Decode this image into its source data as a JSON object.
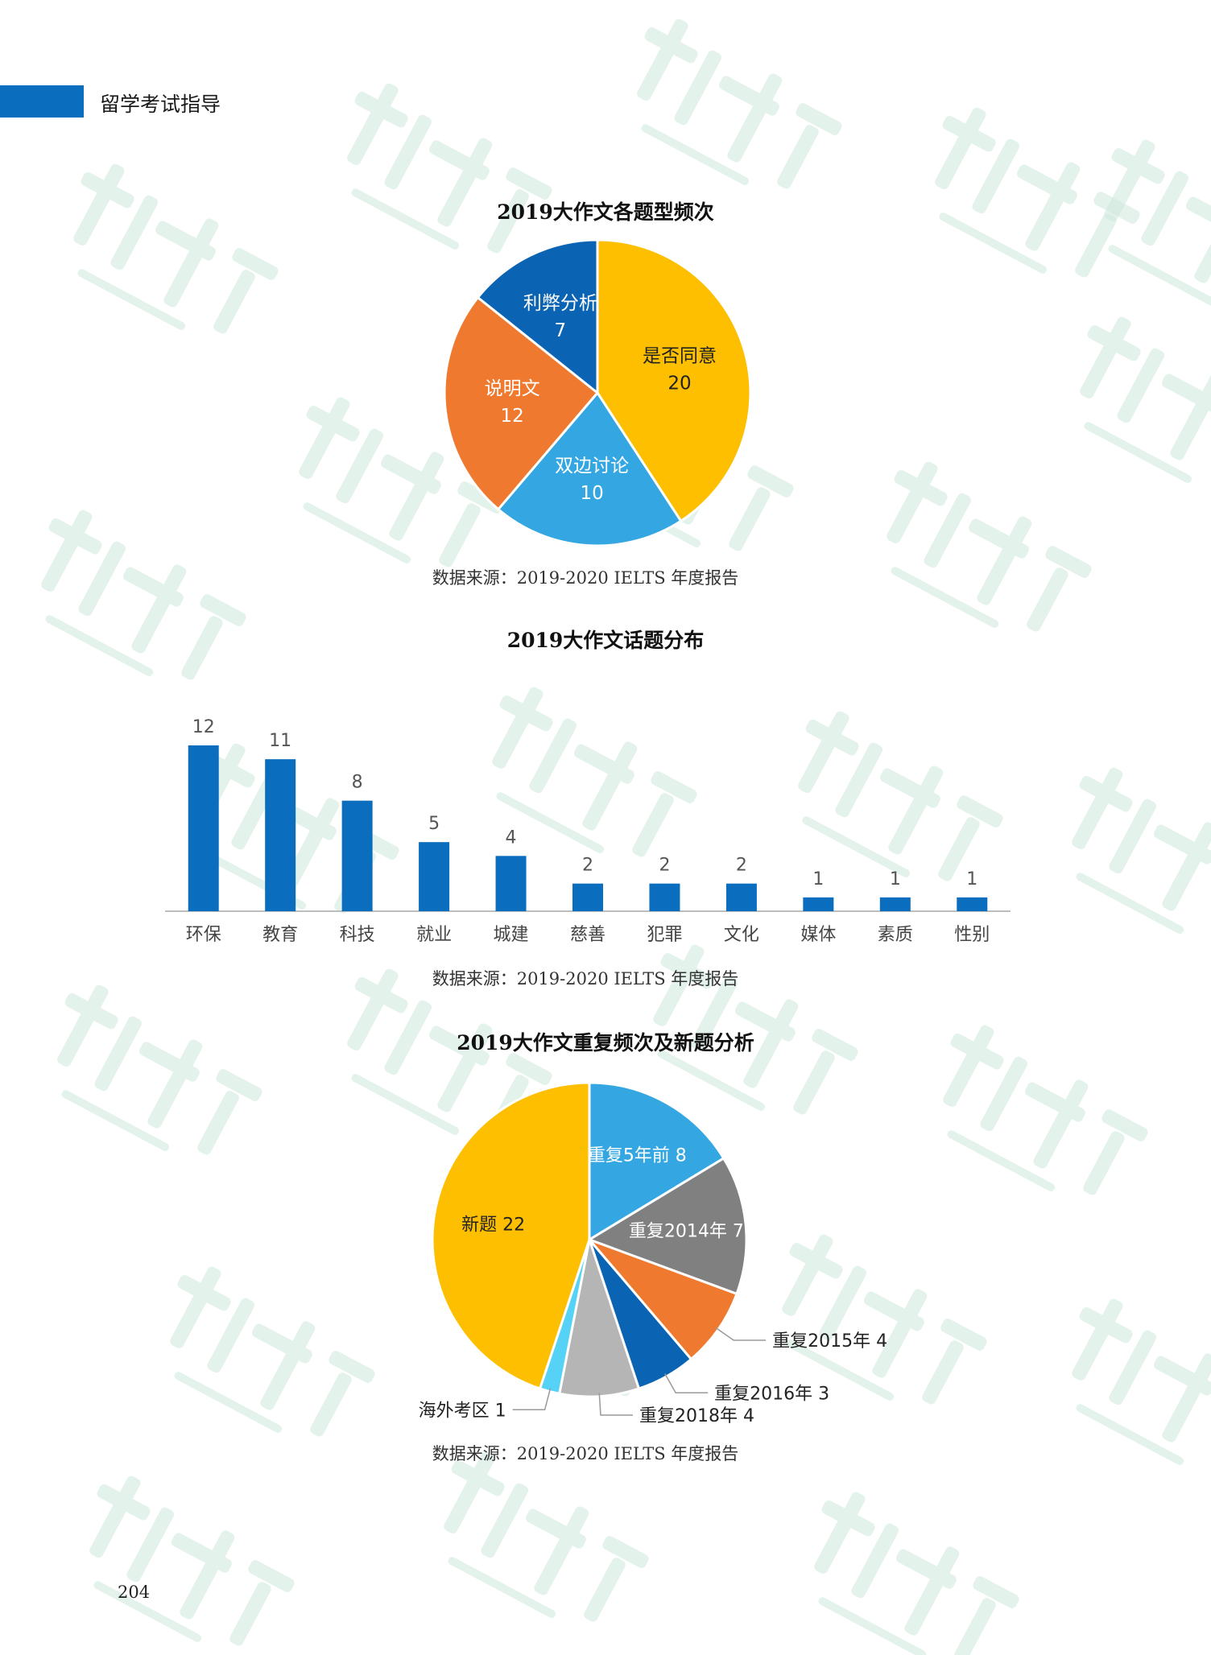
{
  "header": {
    "section_label": "留学考试指导"
  },
  "page_number": "204",
  "colors": {
    "accent": "#0b6dbd",
    "yellow": "#fdbf00",
    "light_blue": "#34a7e2",
    "orange": "#ef7a2f",
    "dark_blue": "#0b63b3",
    "gray": "#808080",
    "light_gray": "#b5b5b5",
    "cyan": "#56d2f6",
    "watermark": "#cfe8dd"
  },
  "chart_data": [
    {
      "type": "pie",
      "title": "2019大作文各题型频次",
      "source": "数据来源：2019-2020 IELTS 年度报告",
      "slices": [
        {
          "label": "是否同意",
          "value": 20,
          "color": "#fdbf00",
          "text_color": "#222222"
        },
        {
          "label": "双边讨论",
          "value": 10,
          "color": "#34a7e2",
          "text_color": "#ffffff"
        },
        {
          "label": "说明文",
          "value": 12,
          "color": "#ef7a2f",
          "text_color": "#ffffff"
        },
        {
          "label": "利弊分析",
          "value": 7,
          "color": "#0b63b3",
          "text_color": "#ffffff"
        }
      ]
    },
    {
      "type": "bar",
      "title": "2019大作文话题分布",
      "source": "数据来源：2019-2020 IELTS 年度报告",
      "categories": [
        "环保",
        "教育",
        "科技",
        "就业",
        "城建",
        "慈善",
        "犯罪",
        "文化",
        "媒体",
        "素质",
        "性别"
      ],
      "values": [
        12,
        11,
        8,
        5,
        4,
        2,
        2,
        2,
        1,
        1,
        1
      ],
      "ylim": [
        0,
        12
      ],
      "bar_color": "#0b6dbd",
      "grid": false
    },
    {
      "type": "pie",
      "title": "2019大作文重复频次及新题分析",
      "source": "数据来源：2019-2020 IELTS 年度报告",
      "slices": [
        {
          "label": "重复5年前",
          "value": 8,
          "display": "重复5年前 8",
          "color": "#34a7e2",
          "text_color": "#ffffff",
          "outside": false
        },
        {
          "label": "重复2014年",
          "value": 7,
          "display": "重复2014年 7",
          "color": "#808080",
          "text_color": "#ffffff",
          "outside": false
        },
        {
          "label": "重复2015年",
          "value": 4,
          "display": "重复2015年 4",
          "color": "#ef7a2f",
          "text_color": "#222222",
          "outside": true
        },
        {
          "label": "重复2016年",
          "value": 3,
          "display": "重复2016年 3",
          "color": "#0b63b3",
          "text_color": "#222222",
          "outside": true
        },
        {
          "label": "重复2018年",
          "value": 4,
          "display": "重复2018年 4",
          "color": "#b5b5b5",
          "text_color": "#222222",
          "outside": true
        },
        {
          "label": "海外考区",
          "value": 1,
          "display": "海外考区 1",
          "color": "#56d2f6",
          "text_color": "#222222",
          "outside": true
        },
        {
          "label": "新题",
          "value": 22,
          "display": "新题 22",
          "color": "#fdbf00",
          "text_color": "#222222",
          "outside": false
        }
      ]
    }
  ]
}
